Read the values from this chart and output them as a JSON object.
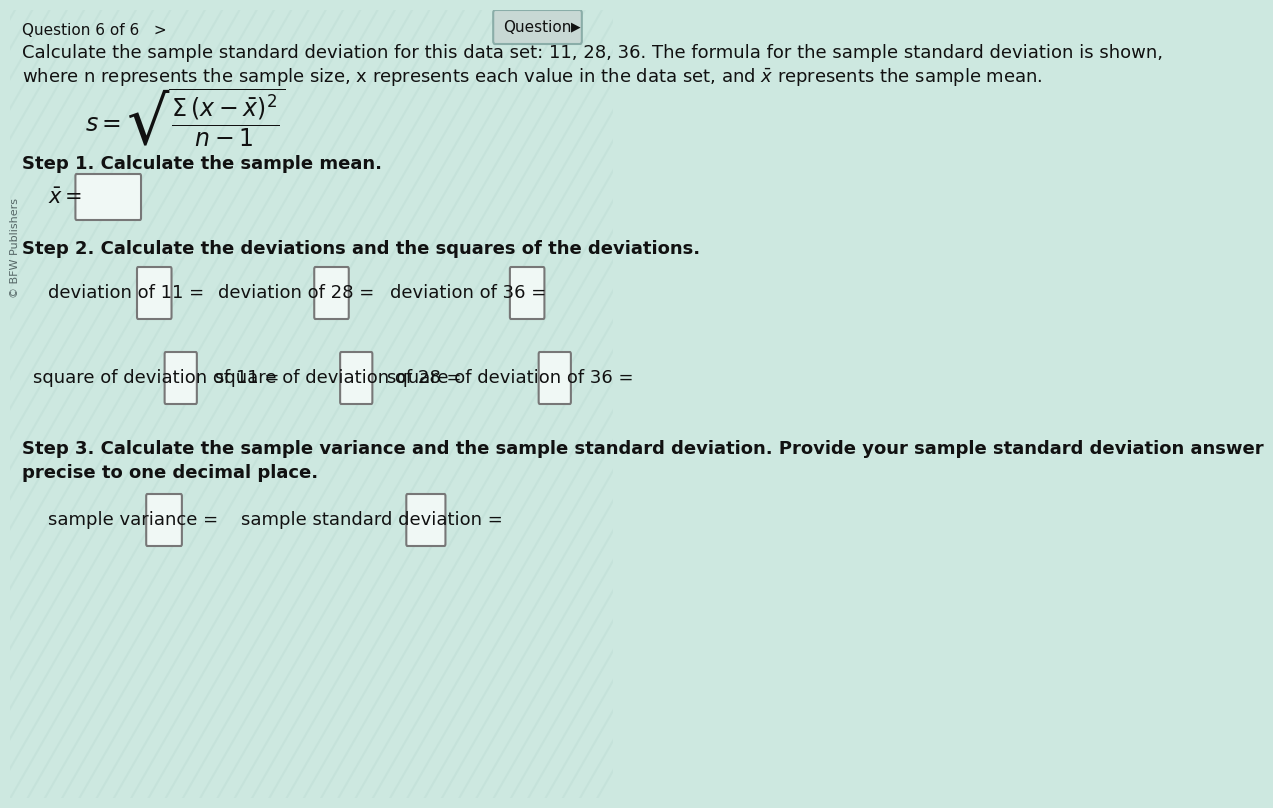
{
  "bg_color": "#cde8e0",
  "stripe_colors": [
    "#cce8df",
    "#d8eeea"
  ],
  "title_nav": "Question 6 of 6   >",
  "question_btn": "Question",
  "main_text_line1": "Calculate the sample standard deviation for this data set: 11, 28, 36. The formula for the sample standard deviation is shown,",
  "main_text_line2": "where n represents the sample size, x represents each value in the data set, and $\\bar{x}$ represents the sample mean.",
  "formula_s": "$s = \\sqrt{\\dfrac{\\Sigma\\,(x - \\bar{x})^2}{n-1}}$",
  "step1_label": "Step 1. Calculate the sample mean.",
  "xbar_label": "$\\bar{x}\\,$=",
  "step2_label": "Step 2. Calculate the deviations and the squares of the deviations.",
  "dev11_label": "deviation of 11 =",
  "dev28_label": "deviation of 28 =",
  "dev36_label": "deviation of 36 =",
  "sq11_label": "square of deviation of 11 =",
  "sq28_label": "square of deviation of 28 =",
  "sq36_label": "square of deviation of 36 =",
  "step3_line1": "Step 3. Calculate the sample variance and the sample standard deviation. Provide your sample standard deviation answer",
  "step3_line2": "precise to one decimal place.",
  "variance_label": "sample variance =",
  "stddev_label": "sample standard deviation =",
  "copyright": "© BFW Publishers",
  "box_facecolor": "#f0f8f5",
  "box_edgecolor": "#777777",
  "btn_facecolor": "#c8d8d4",
  "btn_edgecolor": "#8aada8",
  "text_color": "#111111",
  "nav_color": "#336666",
  "fs_nav": 11,
  "fs_main": 13,
  "fs_formula": 17,
  "fs_step": 13,
  "fs_xbar": 15,
  "fs_copy": 8
}
